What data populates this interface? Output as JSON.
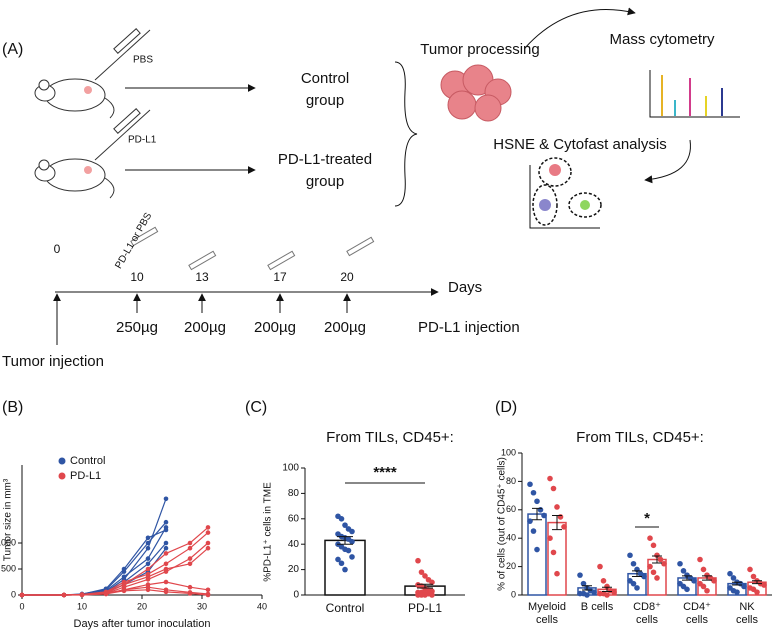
{
  "diagram": {
    "panel": "(A)",
    "pbs": "PBS",
    "pdl1": "PD-L1",
    "control": [
      "Control",
      "group"
    ],
    "treated": [
      "PD-L1-treated",
      "group"
    ],
    "tumor_processing": "Tumor processing",
    "mass_cytometry": "Mass cytometry",
    "hsne": "HSNE & Cytofast analysis",
    "timeline": {
      "days": [
        "0",
        "10",
        "13",
        "17",
        "20"
      ],
      "doses": [
        "250µg",
        "200µg",
        "200µg",
        "200µg"
      ],
      "axis_label": "Days",
      "syringe_label": "PD-L1 or PBS",
      "injection": "PD-L1 injection",
      "tumor_injection": "Tumor injection"
    }
  },
  "chart_data": [
    {
      "type": "line",
      "panel": "(B)",
      "xlabel": "Days after tumor inoculation",
      "ylabel": "Tumor size in mm³",
      "xlim": [
        0,
        40
      ],
      "xticks": [
        0,
        10,
        20,
        30,
        40
      ],
      "ylim": [
        0,
        2500
      ],
      "yticks": [
        0,
        500,
        1000
      ],
      "legend": "top-left",
      "series": [
        {
          "name": "Control",
          "color": "#2f55a4",
          "x": [
            0,
            7,
            10,
            14,
            17,
            21,
            24
          ],
          "lines": [
            [
              0,
              0,
              10,
              60,
              300,
              900,
              1850
            ],
            [
              0,
              0,
              20,
              100,
              450,
              1000,
              1400
            ],
            [
              0,
              0,
              5,
              80,
              350,
              700,
              1300
            ],
            [
              0,
              0,
              15,
              120,
              500,
              1100,
              1250
            ],
            [
              0,
              0,
              10,
              50,
              250,
              600,
              1000
            ],
            [
              0,
              0,
              5,
              40,
              200,
              450,
              900
            ]
          ]
        },
        {
          "name": "PD-L1",
          "color": "#e0474c",
          "x": [
            0,
            7,
            10,
            14,
            17,
            21,
            24,
            28,
            31
          ],
          "lines": [
            [
              0,
              0,
              5,
              40,
              200,
              500,
              800,
              1000,
              1300
            ],
            [
              0,
              0,
              10,
              60,
              250,
              400,
              600,
              900,
              1200
            ],
            [
              0,
              0,
              5,
              30,
              150,
              300,
              450,
              700,
              1000
            ],
            [
              0,
              0,
              5,
              50,
              200,
              350,
              500,
              600,
              900
            ],
            [
              0,
              0,
              5,
              20,
              100,
              200,
              250,
              150,
              100
            ],
            [
              0,
              0,
              5,
              30,
              100,
              150,
              100,
              50,
              20
            ],
            [
              0,
              0,
              0,
              20,
              80,
              100,
              60,
              30,
              0
            ]
          ]
        }
      ]
    },
    {
      "type": "bar",
      "panel": "(C)",
      "title": "From TILs, CD45+:",
      "ylabel": "%PD-L1⁺ cells in TME",
      "categories": [
        "Control",
        "PD-L1"
      ],
      "values": [
        43,
        7
      ],
      "errors": [
        3,
        1.5
      ],
      "colors": [
        "#2f55a4",
        "#e0474c"
      ],
      "points": [
        [
          62,
          60,
          55,
          52,
          50,
          48,
          46,
          45,
          44,
          42,
          40,
          38,
          36,
          35,
          30,
          28,
          25,
          20
        ],
        [
          27,
          18,
          15,
          12,
          10,
          8,
          7,
          5,
          4,
          3,
          2,
          2,
          1,
          1,
          0,
          0,
          0,
          0
        ]
      ],
      "ylim": [
        0,
        100
      ],
      "yticks": [
        0,
        20,
        40,
        60,
        80,
        100
      ],
      "significance": "****"
    },
    {
      "type": "grouped_bar",
      "panel": "(D)",
      "title": "From TILs, CD45+:",
      "ylabel": "% of cells (out of CD45⁺ cells)",
      "categories": [
        [
          "Myeloid",
          "cells"
        ],
        [
          "B cells"
        ],
        [
          "CD8⁺",
          "cells"
        ],
        [
          "CD4⁺",
          "cells"
        ],
        [
          "NK",
          "cells"
        ]
      ],
      "ylim": [
        0,
        100
      ],
      "yticks": [
        0,
        20,
        40,
        60,
        80,
        100
      ],
      "significance": "*",
      "series": [
        {
          "color": "#2f55a4",
          "values": [
            57,
            5,
            15,
            12,
            8
          ],
          "errors": [
            4,
            1.5,
            2,
            1.5,
            1
          ],
          "points": [
            [
              78,
              72,
              66,
              60,
              56,
              52,
              45,
              32
            ],
            [
              14,
              8,
              5,
              3,
              2,
              1,
              1,
              0
            ],
            [
              28,
              22,
              18,
              15,
              13,
              10,
              8,
              5
            ],
            [
              22,
              17,
              14,
              12,
              10,
              8,
              6,
              4
            ],
            [
              15,
              12,
              9,
              8,
              6,
              5,
              3,
              2
            ]
          ]
        },
        {
          "color": "#e0474c",
          "values": [
            51,
            4,
            25,
            12,
            9
          ],
          "errors": [
            5,
            1.5,
            2.5,
            1.5,
            1
          ],
          "points": [
            [
              82,
              75,
              62,
              55,
              48,
              40,
              30,
              15
            ],
            [
              20,
              10,
              6,
              3,
              2,
              1,
              1,
              0
            ],
            [
              40,
              35,
              28,
              25,
              22,
              20,
              16,
              12
            ],
            [
              25,
              18,
              14,
              12,
              10,
              8,
              6,
              3
            ],
            [
              18,
              13,
              10,
              8,
              7,
              5,
              4,
              2
            ]
          ]
        }
      ]
    }
  ]
}
